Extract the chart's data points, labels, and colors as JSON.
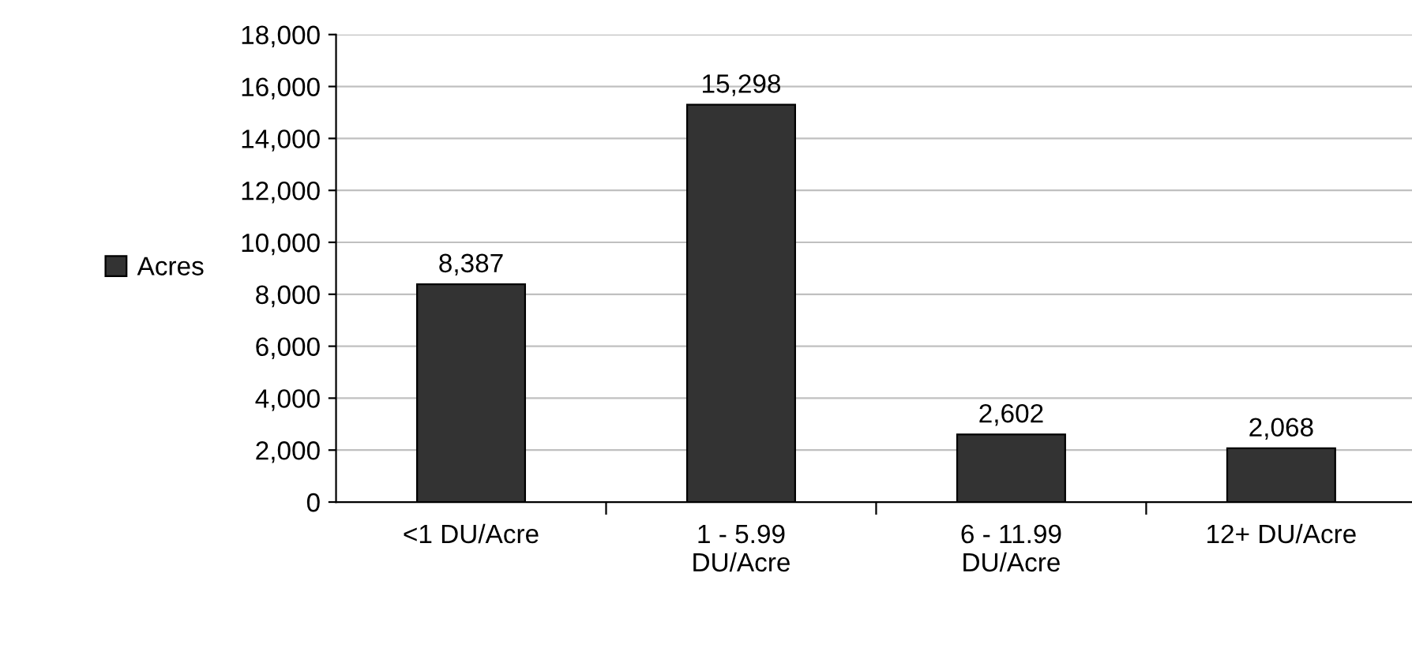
{
  "chart_data": {
    "type": "bar",
    "categories": [
      "<1 DU/Acre",
      "1 - 5.99\nDU/Acre",
      "6 - 11.99\nDU/Acre",
      "12+ DU/Acre"
    ],
    "series": [
      {
        "name": "Acres",
        "color": "#333333",
        "values": [
          8387,
          15298,
          2602,
          2068
        ],
        "value_labels": [
          "8,387",
          "15,298",
          "2,602",
          "2,068"
        ]
      }
    ],
    "ylim": [
      0,
      18000
    ],
    "yticks": [
      {
        "value": 0,
        "label": "0"
      },
      {
        "value": 2000,
        "label": "2,000"
      },
      {
        "value": 4000,
        "label": "4,000"
      },
      {
        "value": 6000,
        "label": "6,000"
      },
      {
        "value": 8000,
        "label": "8,000"
      },
      {
        "value": 10000,
        "label": "10,000"
      },
      {
        "value": 12000,
        "label": "12,000"
      },
      {
        "value": 14000,
        "label": "14,000"
      },
      {
        "value": 16000,
        "label": "16,000"
      },
      {
        "value": 18000,
        "label": "18,000"
      }
    ],
    "grid": "y",
    "legend": "left"
  }
}
